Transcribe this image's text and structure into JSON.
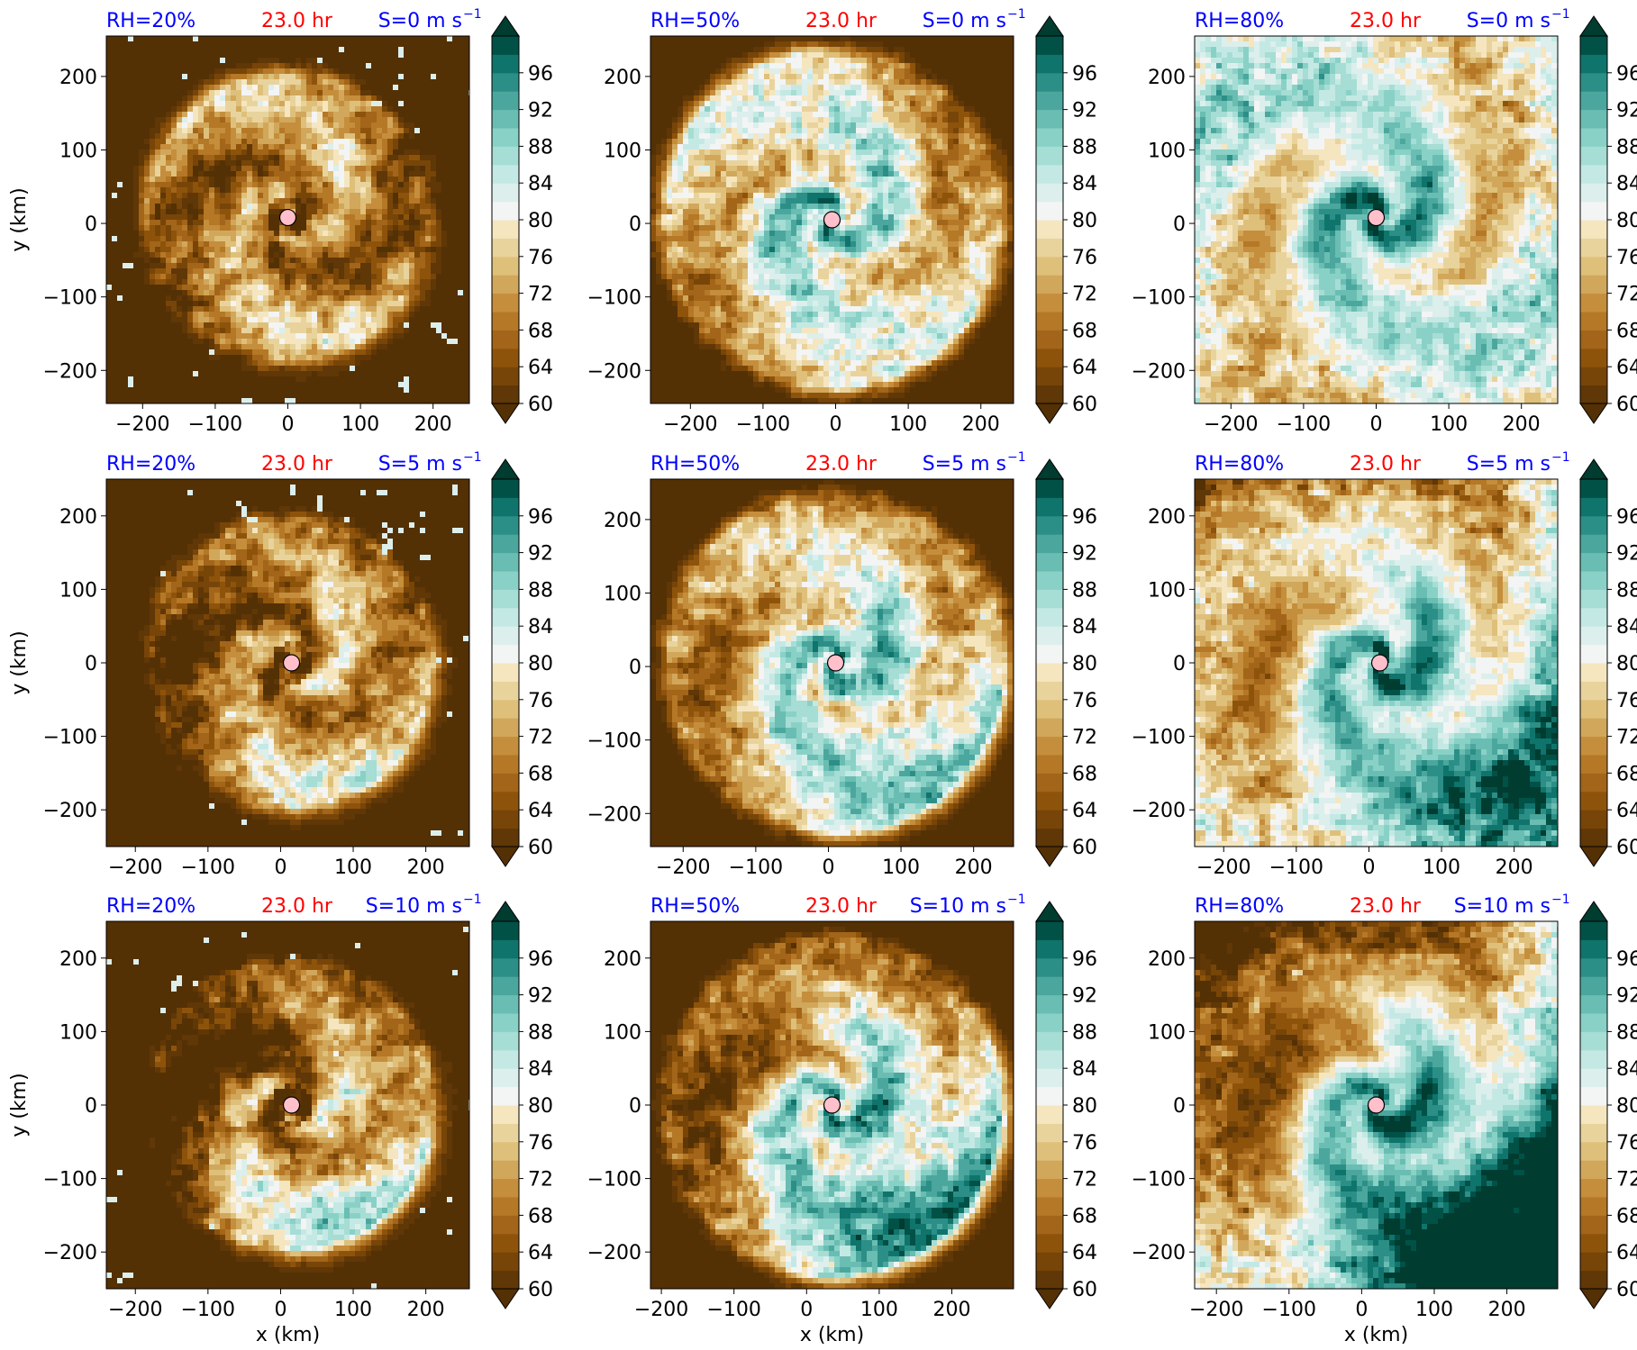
{
  "chart_data": {
    "type": "heatmap",
    "layout": {
      "rows": 3,
      "cols": 3
    },
    "ylabel": "y (km)",
    "xlabel": "x (km)",
    "colorbar": {
      "ticks": [
        60,
        64,
        68,
        72,
        76,
        80,
        84,
        88,
        92,
        96
      ],
      "range": [
        60,
        100
      ],
      "extend": "both",
      "colors": {
        "dry_dark": "#543005",
        "dry_mid": "#bf812d",
        "neutral": "#f5f5f5",
        "moist_mid": "#35978f",
        "moist_dark": "#003c30"
      }
    },
    "title_colors": {
      "rh": "#0000ff",
      "time": "#ff0000",
      "shear": "#0000ff"
    },
    "center_marker_color": "#ffc0cb",
    "panels": [
      {
        "rh_label": "RH=20%",
        "time_label": "23.0 hr",
        "shear_label": "S=0 m s",
        "shear_exp": "−1",
        "rh": 20,
        "shear": 0,
        "xlim": [
          -250,
          250
        ],
        "ylim": [
          -245,
          255
        ],
        "xticks": [
          -200,
          -100,
          0,
          100,
          200
        ],
        "yticks": [
          -200,
          -100,
          0,
          100,
          200
        ],
        "center": [
          0,
          8
        ]
      },
      {
        "rh_label": "RH=50%",
        "time_label": "23.0 hr",
        "shear_label": "S=0 m s",
        "shear_exp": "−1",
        "rh": 50,
        "shear": 0,
        "xlim": [
          -255,
          245
        ],
        "ylim": [
          -245,
          255
        ],
        "xticks": [
          -200,
          -100,
          0,
          100,
          200
        ],
        "yticks": [
          -200,
          -100,
          0,
          100,
          200
        ],
        "center": [
          -5,
          5
        ]
      },
      {
        "rh_label": "RH=80%",
        "time_label": "23.0 hr",
        "shear_label": "S=0 m s",
        "shear_exp": "−1",
        "rh": 80,
        "shear": 0,
        "xlim": [
          -250,
          250
        ],
        "ylim": [
          -245,
          255
        ],
        "xticks": [
          -200,
          -100,
          0,
          100,
          200
        ],
        "yticks": [
          -200,
          -100,
          0,
          100,
          200
        ],
        "center": [
          0,
          8
        ]
      },
      {
        "rh_label": "RH=20%",
        "time_label": "23.0 hr",
        "shear_label": "S=5 m s",
        "shear_exp": "−1",
        "rh": 20,
        "shear": 5,
        "xlim": [
          -240,
          260
        ],
        "ylim": [
          -250,
          250
        ],
        "xticks": [
          -200,
          -100,
          0,
          100,
          200
        ],
        "yticks": [
          -200,
          -100,
          0,
          100,
          200
        ],
        "center": [
          15,
          0
        ]
      },
      {
        "rh_label": "RH=50%",
        "time_label": "23.0 hr",
        "shear_label": "S=5 m s",
        "shear_exp": "−1",
        "rh": 50,
        "shear": 5,
        "xlim": [
          -245,
          255
        ],
        "ylim": [
          -245,
          255
        ],
        "xticks": [
          -200,
          -100,
          0,
          100,
          200
        ],
        "yticks": [
          -200,
          -100,
          0,
          100,
          200
        ],
        "center": [
          10,
          5
        ]
      },
      {
        "rh_label": "RH=80%",
        "time_label": "23.0 hr",
        "shear_label": "S=5 m s",
        "shear_exp": "−1",
        "rh": 80,
        "shear": 5,
        "xlim": [
          -240,
          260
        ],
        "ylim": [
          -250,
          250
        ],
        "xticks": [
          -200,
          -100,
          0,
          100,
          200
        ],
        "yticks": [
          -200,
          -100,
          0,
          100,
          200
        ],
        "center": [
          15,
          0
        ]
      },
      {
        "rh_label": "RH=20%",
        "time_label": "23.0 hr",
        "shear_label": "S=10 m s",
        "shear_exp": "−1",
        "rh": 20,
        "shear": 10,
        "xlim": [
          -240,
          260
        ],
        "ylim": [
          -250,
          250
        ],
        "xticks": [
          -200,
          -100,
          0,
          100,
          200
        ],
        "yticks": [
          -200,
          -100,
          0,
          100,
          200
        ],
        "center": [
          15,
          0
        ]
      },
      {
        "rh_label": "RH=50%",
        "time_label": "23.0 hr",
        "shear_label": "S=10 m s",
        "shear_exp": "−1",
        "rh": 50,
        "shear": 10,
        "xlim": [
          -215,
          285
        ],
        "ylim": [
          -250,
          250
        ],
        "xticks": [
          -200,
          -100,
          0,
          100,
          200
        ],
        "yticks": [
          -200,
          -100,
          0,
          100,
          200
        ],
        "center": [
          35,
          0
        ]
      },
      {
        "rh_label": "RH=80%",
        "time_label": "23.0 hr",
        "shear_label": "S=10 m s",
        "shear_exp": "−1",
        "rh": 80,
        "shear": 10,
        "xlim": [
          -230,
          270
        ],
        "ylim": [
          -250,
          250
        ],
        "xticks": [
          -200,
          -100,
          0,
          100,
          200
        ],
        "yticks": [
          -200,
          -100,
          0,
          100,
          200
        ],
        "center": [
          20,
          0
        ]
      }
    ]
  }
}
